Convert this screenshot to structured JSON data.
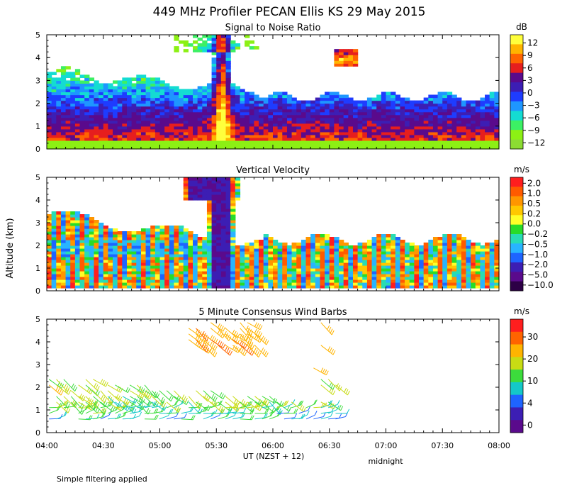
{
  "title": "449 MHz Profiler PECAN Ellis KS 29 May 2015",
  "y_axis_label": "Altitude (km)",
  "x_axis": {
    "ticks": [
      "04:00",
      "04:30",
      "05:00",
      "05:30",
      "06:00",
      "06:30",
      "07:00",
      "07:30",
      "08:00"
    ],
    "label": "UT  (NZST + 12)",
    "midnight_label": "midnight"
  },
  "footnote": "Simple filtering applied",
  "chart_data": [
    {
      "type": "heatmap",
      "title": "Signal to Noise Ratio",
      "units": "dB",
      "x_range": [
        "04:00",
        "08:00"
      ],
      "ylim": [
        0,
        5
      ],
      "yticks": [
        "0",
        "1",
        "2",
        "3",
        "4",
        "5"
      ],
      "colorbar": {
        "ticks": [
          "12",
          "9",
          "6",
          "3",
          "0",
          "−3",
          "−6",
          "−9",
          "−12"
        ],
        "colors": [
          "#ffff3c",
          "#ffb400",
          "#ff6400",
          "#e61e1e",
          "#5a0a8c",
          "#3c1eb4",
          "#1e3cff",
          "#1e96ff",
          "#14dcd2",
          "#3cf064",
          "#8cf014",
          "#8cdc32"
        ]
      }
    },
    {
      "type": "heatmap",
      "title": "Vertical Velocity",
      "units": "m/s",
      "x_range": [
        "04:00",
        "08:00"
      ],
      "ylim": [
        0,
        5
      ],
      "yticks": [
        "0",
        "1",
        "2",
        "3",
        "4",
        "5"
      ],
      "colorbar": {
        "ticks": [
          "2.0",
          "1.0",
          "0.5",
          "0.2",
          "0.0",
          "−0.2",
          "−0.5",
          "−1.0",
          "−2.0",
          "−5.0",
          "−10.0"
        ],
        "colors": [
          "#ff1e1e",
          "#ff5a00",
          "#ff9600",
          "#ffc800",
          "#ffff28",
          "#28dc28",
          "#28dcb4",
          "#28b4ff",
          "#1e64ff",
          "#3c1eb4",
          "#5a0a8c",
          "#2d0046"
        ]
      }
    },
    {
      "type": "scatter",
      "title": "5 Minute Consensus Wind Barbs",
      "units": "m/s",
      "x_range": [
        "04:00",
        "08:00"
      ],
      "ylim": [
        0,
        5
      ],
      "yticks": [
        "0",
        "1",
        "2",
        "3",
        "4",
        "5"
      ],
      "colorbar": {
        "ticks": [
          "30",
          "20",
          "10",
          "4",
          "0"
        ],
        "colors": [
          "#ff1e1e",
          "#ff6400",
          "#ffb400",
          "#c8dc14",
          "#3cdc3c",
          "#14c8c8",
          "#1e64ff",
          "#3c1eb4",
          "#5a0a8c"
        ]
      }
    }
  ]
}
